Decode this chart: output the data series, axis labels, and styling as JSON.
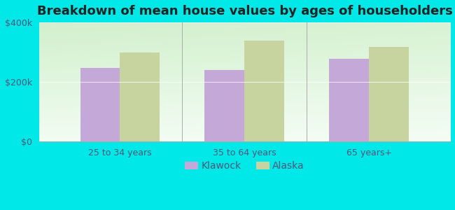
{
  "title": "Breakdown of mean house values by ages of householders",
  "categories": [
    "25 to 34 years",
    "35 to 64 years",
    "65 years+"
  ],
  "klawock_values": [
    248000,
    240000,
    278000
  ],
  "alaska_values": [
    298000,
    338000,
    318000
  ],
  "klawock_color": "#c4a8d8",
  "alaska_color": "#c8d4a0",
  "background_color": "#00e8e8",
  "ylim": [
    0,
    400000
  ],
  "yticks": [
    0,
    200000,
    400000
  ],
  "ytick_labels": [
    "$0",
    "$200k",
    "$400k"
  ],
  "legend_labels": [
    "Klawock",
    "Alaska"
  ],
  "bar_width": 0.32,
  "title_fontsize": 13,
  "tick_fontsize": 9,
  "legend_fontsize": 10,
  "tick_color": "#555577"
}
